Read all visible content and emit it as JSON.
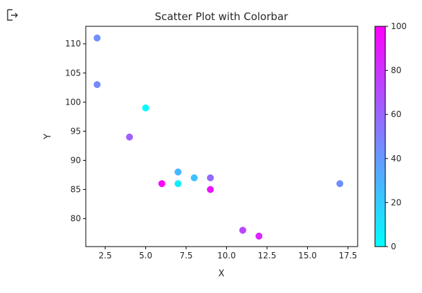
{
  "output_icon": "output-arrow-icon",
  "chart_data": {
    "type": "scatter",
    "title": "Scatter Plot with Colorbar",
    "xlabel": "X",
    "ylabel": "Y",
    "xlim": [
      1.3,
      18.1
    ],
    "ylim": [
      75.2,
      113.0
    ],
    "xticks": [
      2.5,
      5.0,
      7.5,
      10.0,
      12.5,
      15.0,
      17.5
    ],
    "xtick_labels": [
      "2.5",
      "5.0",
      "7.5",
      "10.0",
      "12.5",
      "15.0",
      "17.5"
    ],
    "yticks": [
      80,
      85,
      90,
      95,
      100,
      105,
      110
    ],
    "ytick_labels": [
      "80",
      "85",
      "90",
      "95",
      "100",
      "105",
      "110"
    ],
    "grid": false,
    "colormap": "cool",
    "colormap_stops": [
      "#00ffff",
      "#ff00ff"
    ],
    "colorbar": {
      "range": [
        0,
        100
      ],
      "ticks": [
        0,
        20,
        40,
        60,
        80,
        100
      ],
      "tick_labels": [
        "0",
        "20",
        "40",
        "60",
        "80",
        "100"
      ]
    },
    "points": [
      {
        "x": 2,
        "y": 111,
        "c": 43
      },
      {
        "x": 2,
        "y": 103,
        "c": 46
      },
      {
        "x": 5,
        "y": 99,
        "c": 2
      },
      {
        "x": 4,
        "y": 94,
        "c": 62
      },
      {
        "x": 7,
        "y": 88,
        "c": 28
      },
      {
        "x": 8,
        "y": 87,
        "c": 24
      },
      {
        "x": 9,
        "y": 87,
        "c": 58
      },
      {
        "x": 6,
        "y": 86,
        "c": 98
      },
      {
        "x": 7,
        "y": 86,
        "c": 8
      },
      {
        "x": 9,
        "y": 85,
        "c": 92
      },
      {
        "x": 17,
        "y": 86,
        "c": 44
      },
      {
        "x": 11,
        "y": 78,
        "c": 72
      },
      {
        "x": 12,
        "y": 77,
        "c": 86
      }
    ]
  }
}
